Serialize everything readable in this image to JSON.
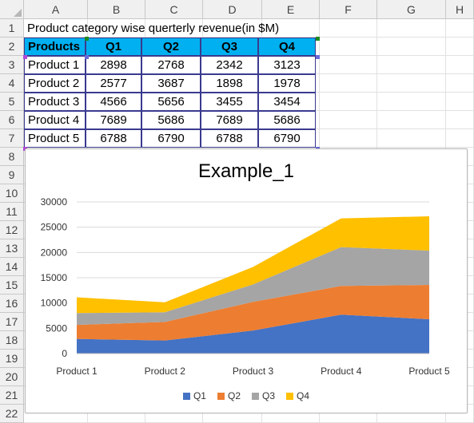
{
  "columns": [
    "A",
    "B",
    "C",
    "D",
    "E",
    "F",
    "G",
    "H"
  ],
  "rows": [
    "1",
    "2",
    "3",
    "4",
    "5",
    "6",
    "7",
    "8",
    "9",
    "10",
    "11",
    "12",
    "13",
    "14",
    "15",
    "16",
    "17",
    "18",
    "19",
    "20",
    "21",
    "22"
  ],
  "sheet_title": "Product category wise querterly revenue(in $M)",
  "table": {
    "headers": [
      "Products",
      "Q1",
      "Q2",
      "Q3",
      "Q4"
    ],
    "rows": [
      [
        "Product 1",
        "2898",
        "2768",
        "2342",
        "3123"
      ],
      [
        "Product 2",
        "2577",
        "3687",
        "1898",
        "1978"
      ],
      [
        "Product 3",
        "4566",
        "5656",
        "3455",
        "3454"
      ],
      [
        "Product 4",
        "7689",
        "5686",
        "7689",
        "5686"
      ],
      [
        "Product 5",
        "6788",
        "6790",
        "6788",
        "6790"
      ]
    ]
  },
  "colors": {
    "header_fill": "#00b0f0",
    "q1": "#4472c4",
    "q2": "#ed7d31",
    "q3": "#a5a5a5",
    "q4": "#ffc000"
  },
  "chart_data": {
    "type": "area",
    "stacked": true,
    "title": "Example_1",
    "categories": [
      "Product 1",
      "Product 2",
      "Product 3",
      "Product 4",
      "Product 5"
    ],
    "series": [
      {
        "name": "Q1",
        "values": [
          2898,
          2577,
          4566,
          7689,
          6788
        ]
      },
      {
        "name": "Q2",
        "values": [
          2768,
          3687,
          5656,
          5686,
          6790
        ]
      },
      {
        "name": "Q3",
        "values": [
          2342,
          1898,
          3455,
          7689,
          6788
        ]
      },
      {
        "name": "Q4",
        "values": [
          3123,
          1978,
          3454,
          5686,
          6790
        ]
      }
    ],
    "ylim": [
      0,
      30000
    ],
    "yticks": [
      "0",
      "5000",
      "10000",
      "15000",
      "20000",
      "25000",
      "30000"
    ],
    "grid": true,
    "legend_position": "bottom"
  }
}
